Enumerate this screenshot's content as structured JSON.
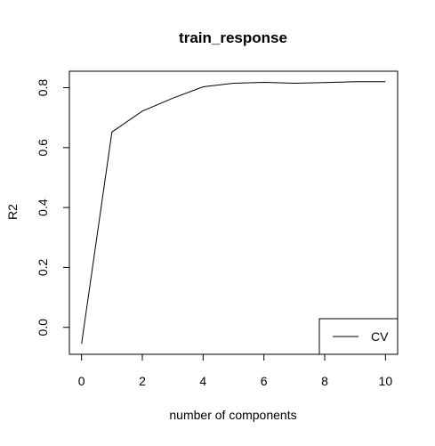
{
  "chart_data": {
    "type": "line",
    "title": "train_response",
    "xlabel": "number of components",
    "ylabel": "R2",
    "xlim": [
      -0.4,
      10.4
    ],
    "ylim": [
      -0.09,
      0.855
    ],
    "x_ticks": [
      0,
      2,
      4,
      6,
      8,
      10
    ],
    "y_ticks": [
      0.0,
      0.2,
      0.4,
      0.6,
      0.8
    ],
    "x_tick_labels": [
      "0",
      "2",
      "4",
      "6",
      "8",
      "10"
    ],
    "y_tick_labels": [
      "0.0",
      "0.2",
      "0.4",
      "0.6",
      "0.8"
    ],
    "grid": false,
    "legend_position": "bottom-right",
    "series": [
      {
        "name": "CV",
        "color": "#000000",
        "x": [
          0,
          1,
          2,
          3,
          4,
          5,
          6,
          7,
          8,
          9,
          10
        ],
        "values": [
          -0.055,
          0.652,
          0.722,
          0.765,
          0.803,
          0.815,
          0.818,
          0.815,
          0.817,
          0.82,
          0.82
        ]
      }
    ]
  }
}
